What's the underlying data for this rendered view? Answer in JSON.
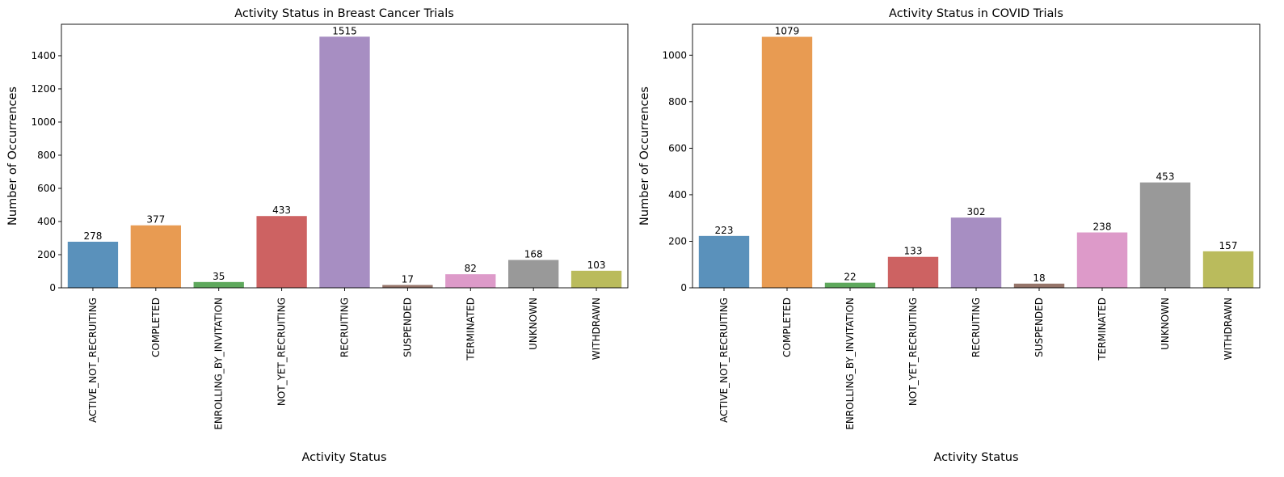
{
  "chart_data": [
    {
      "type": "bar",
      "title": "Activity Status in Breast Cancer Trials",
      "xlabel": "Activity Status",
      "ylabel": "Number of Occurrences",
      "categories": [
        "ACTIVE_NOT_RECRUITING",
        "COMPLETED",
        "ENROLLING_BY_INVITATION",
        "NOT_YET_RECRUITING",
        "RECRUITING",
        "SUSPENDED",
        "TERMINATED",
        "UNKNOWN",
        "WITHDRAWN"
      ],
      "values": [
        278,
        377,
        35,
        433,
        1515,
        17,
        82,
        168,
        103
      ],
      "ylim": [
        0,
        1590
      ],
      "yticks": [
        0,
        200,
        400,
        600,
        800,
        1000,
        1200,
        1400
      ],
      "grid": false,
      "colors": [
        "#5a91bb",
        "#e89b52",
        "#5ea85c",
        "#cd6262",
        "#a78ec2",
        "#957469",
        "#dd9ac9",
        "#999999",
        "#babb5c"
      ]
    },
    {
      "type": "bar",
      "title": "Activity Status in COVID Trials",
      "xlabel": "Activity Status",
      "ylabel": "Number of Occurrences",
      "categories": [
        "ACTIVE_NOT_RECRUITING",
        "COMPLETED",
        "ENROLLING_BY_INVITATION",
        "NOT_YET_RECRUITING",
        "RECRUITING",
        "SUSPENDED",
        "TERMINATED",
        "UNKNOWN",
        "WITHDRAWN"
      ],
      "values": [
        223,
        1079,
        22,
        133,
        302,
        18,
        238,
        453,
        157
      ],
      "ylim": [
        0,
        1133
      ],
      "yticks": [
        0,
        200,
        400,
        600,
        800,
        1000
      ],
      "grid": false,
      "colors": [
        "#5a91bb",
        "#e89b52",
        "#5ea85c",
        "#cd6262",
        "#a78ec2",
        "#957469",
        "#dd9ac9",
        "#999999",
        "#babb5c"
      ]
    }
  ]
}
